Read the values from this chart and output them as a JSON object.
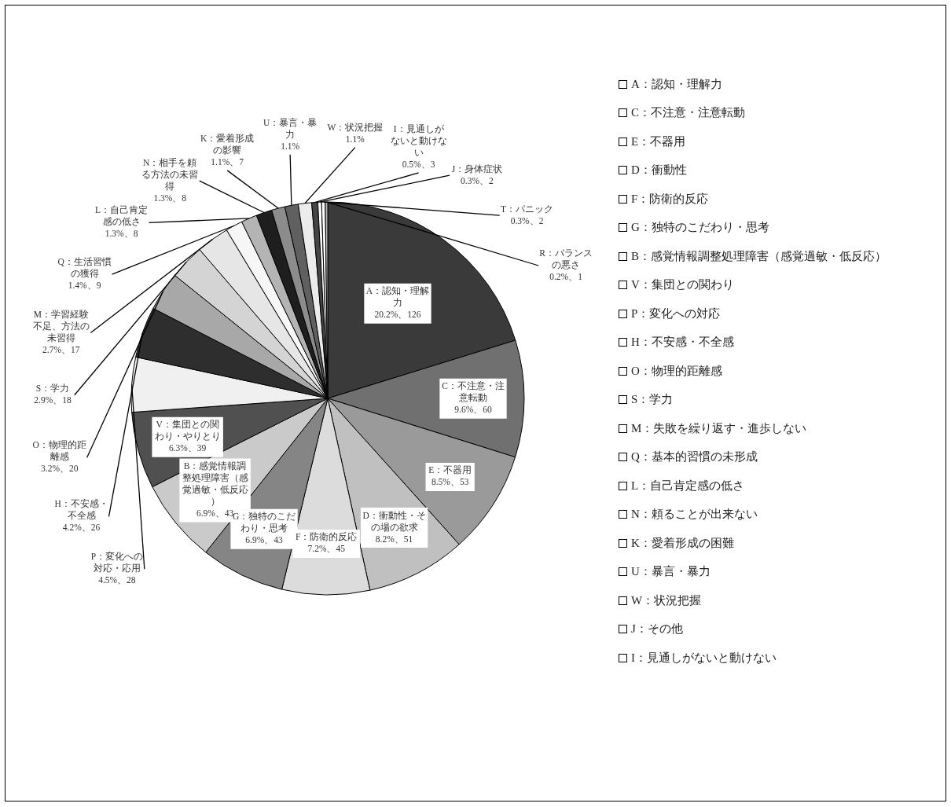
{
  "chart_data": [
    {
      "type": "pie",
      "categories": [
        "A：認知・理解力",
        "C：不注意・注意転動",
        "E：不器用",
        "D：衝動性・その場の欲求",
        "F：防衛的反応",
        "G：独特のこだわり・思考",
        "B：感覚情報調整処理障害（感覚過敏・低反応）",
        "V：集団との関わり・やりとり",
        "P：変化への対応・応用",
        "H：不安感・不全感",
        "O：物理的距離感",
        "S：学力",
        "M：学習経験不足、方法の未習得",
        "Q：生活習慣の獲得",
        "L：自己肯定感の低さ",
        "N：相手を頼る方法の未習得",
        "K：愛着形成の影響",
        "U：暴言・暴力",
        "W：状況把握",
        "I：見通しがないと動けない",
        "J：身体症状",
        "T：パニック",
        "R：バランスの悪さ"
      ],
      "values": [
        20.2,
        9.6,
        8.5,
        8.2,
        7.2,
        6.9,
        6.9,
        6.3,
        4.5,
        4.2,
        3.2,
        2.9,
        2.7,
        1.4,
        1.3,
        1.3,
        1.1,
        1.1,
        1.1,
        0.5,
        0.3,
        0.3,
        0.2
      ],
      "value_labels": [
        "20.2%、126",
        "9.6%、60",
        "8.5%、53",
        "8.2%、51",
        "7.2%、45",
        "6.9%、43",
        "6.9%、43",
        "6.3%、39",
        "4.5%、28",
        "4.2%、26",
        "3.2%、20",
        "2.9%、18",
        "2.7%、17",
        "1.4%、9",
        "1.3%、8",
        "1.3%、8",
        "1.1%、7",
        "1.1%",
        "1.1%",
        "0.5%、3",
        "0.3%、2",
        "0.3%、2",
        "0.2%、1"
      ],
      "colors": [
        "#3a3a3a",
        "#707070",
        "#9a9a9a",
        "#c0c0c0",
        "#dcdcdc",
        "#858585",
        "#cacaca",
        "#505050",
        "#f0f0f0",
        "#2e2e2e",
        "#a8a8a8",
        "#d4d4d4",
        "#e6e6e6",
        "#f6f6f6",
        "#b4b4b4",
        "#1e1e1e",
        "#8c8c8c",
        "#606060",
        "#ececec",
        "#454545",
        "#fafafa",
        "#ffffff",
        "#bbbbbb"
      ]
    },
    {
      "type": "other",
      "annotations": [
        "A：認知・理解力",
        "C：不注意・注意転動",
        "E：不器用",
        "D：衝動性",
        "F：防衛的反応",
        "G：独特のこだわり・思考",
        "B：感覚情報調整処理障害（感覚過敏・低反応）",
        "V：集団との関わり",
        "P：変化への対応",
        "H：不安感・不全感",
        "O：物理的距離感",
        "S：学力",
        "M：失敗を繰り返す・進歩しない",
        "Q：基本的習慣の未形成",
        "L：自己肯定感の低さ",
        "N：頼ることが出来ない",
        "K：愛着形成の困難",
        "U：暴言・暴力",
        "W：状況把握",
        "J：その他",
        "I：見通しがないと動けない"
      ]
    }
  ]
}
